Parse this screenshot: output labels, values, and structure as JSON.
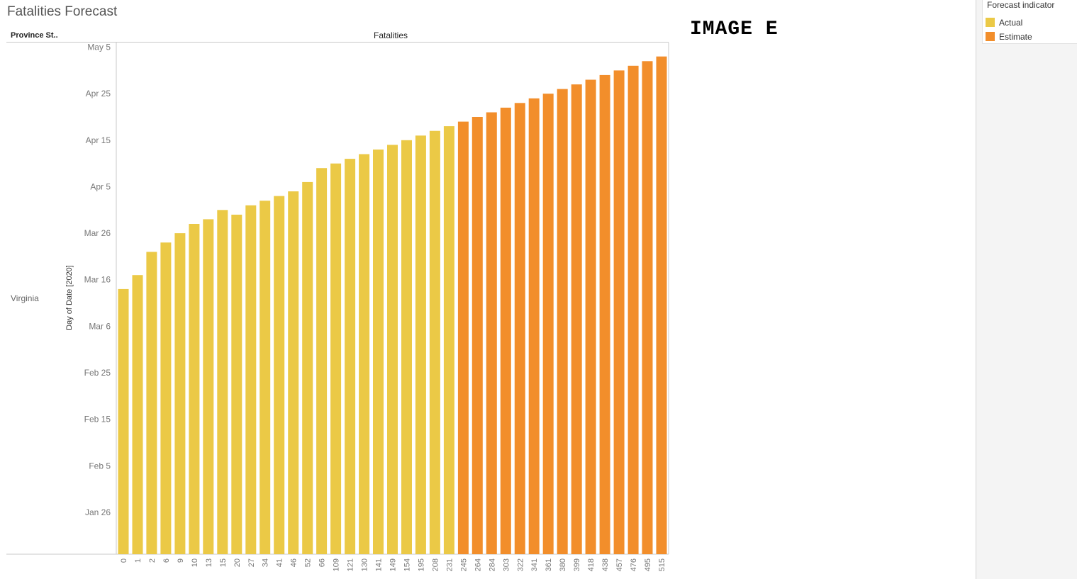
{
  "page": {
    "title": "Fatalities Forecast",
    "image_label": "IMAGE E"
  },
  "headers": {
    "province": "Province St..",
    "measure": "Fatalities"
  },
  "row": {
    "label": "Virginia"
  },
  "legend": {
    "title": "Forecast indicator",
    "items": [
      {
        "label": "Actual",
        "color": "#EBC946"
      },
      {
        "label": "Estimate",
        "color": "#F28E2B"
      }
    ]
  },
  "chart_data": {
    "type": "bar",
    "orientation": "vertical",
    "title": "Fatalities Forecast",
    "xlabel": "",
    "ylabel": "Day of Date [2020]",
    "x_note": "categories are Fatalities values",
    "categories": [
      "0",
      "1",
      "2",
      "6",
      "9",
      "10",
      "13",
      "15",
      "20",
      "27",
      "34",
      "41",
      "46",
      "52",
      "66",
      "109",
      "121",
      "130",
      "141",
      "149",
      "154",
      "195",
      "208",
      "231",
      "245",
      "264",
      "284",
      "303",
      "322",
      "341",
      "361",
      "380",
      "399",
      "418",
      "438",
      "457",
      "476",
      "495",
      "515"
    ],
    "values": [
      "2020-03-14",
      "2020-03-17",
      "2020-03-22",
      "2020-03-24",
      "2020-03-26",
      "2020-03-28",
      "2020-03-29",
      "2020-03-31",
      "2020-03-30",
      "2020-04-01",
      "2020-04-02",
      "2020-04-03",
      "2020-04-04",
      "2020-04-06",
      "2020-04-09",
      "2020-04-10",
      "2020-04-11",
      "2020-04-12",
      "2020-04-13",
      "2020-04-14",
      "2020-04-15",
      "2020-04-16",
      "2020-04-17",
      "2020-04-18",
      "2020-04-19",
      "2020-04-20",
      "2020-04-21",
      "2020-04-22",
      "2020-04-23",
      "2020-04-24",
      "2020-04-25",
      "2020-04-26",
      "2020-04-27",
      "2020-04-28",
      "2020-04-29",
      "2020-04-30",
      "2020-05-01",
      "2020-05-02",
      "2020-05-03"
    ],
    "indicator": [
      "Actual",
      "Actual",
      "Actual",
      "Actual",
      "Actual",
      "Actual",
      "Actual",
      "Actual",
      "Actual",
      "Actual",
      "Actual",
      "Actual",
      "Actual",
      "Actual",
      "Actual",
      "Actual",
      "Actual",
      "Actual",
      "Actual",
      "Actual",
      "Actual",
      "Actual",
      "Actual",
      "Actual",
      "Estimate",
      "Estimate",
      "Estimate",
      "Estimate",
      "Estimate",
      "Estimate",
      "Estimate",
      "Estimate",
      "Estimate",
      "Estimate",
      "Estimate",
      "Estimate",
      "Estimate",
      "Estimate",
      "Estimate"
    ],
    "y_ticks": [
      {
        "label": "Jan 26",
        "date": "2020-01-26"
      },
      {
        "label": "Feb 5",
        "date": "2020-02-05"
      },
      {
        "label": "Feb 15",
        "date": "2020-02-15"
      },
      {
        "label": "Feb 25",
        "date": "2020-02-25"
      },
      {
        "label": "Mar 6",
        "date": "2020-03-06"
      },
      {
        "label": "Mar 16",
        "date": "2020-03-16"
      },
      {
        "label": "Mar 26",
        "date": "2020-03-26"
      },
      {
        "label": "Apr 5",
        "date": "2020-04-05"
      },
      {
        "label": "Apr 15",
        "date": "2020-04-15"
      },
      {
        "label": "Apr 25",
        "date": "2020-04-25"
      },
      {
        "label": "May 5",
        "date": "2020-05-05"
      }
    ],
    "ylim": [
      "2020-01-17",
      "2020-05-06"
    ],
    "grid": false,
    "legend_position": "top-right"
  }
}
